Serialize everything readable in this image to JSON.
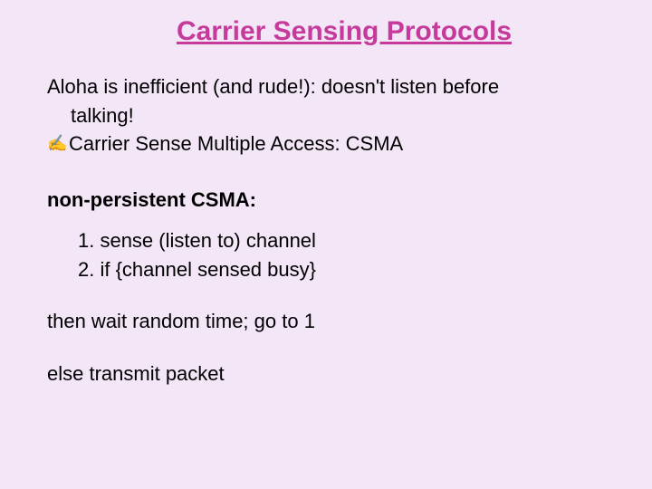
{
  "title": "Carrier Sensing Protocols",
  "title_color": "#c63a9c",
  "background_color": "#f2e6f7",
  "body_color": "#000000",
  "title_fontsize": 30,
  "body_fontsize": 22,
  "intro_line1": "Aloha is inefficient (and rude!): doesn't listen before",
  "intro_line2": "talking!",
  "bullet_glyph": "✍",
  "bullet_text": "Carrier Sense Multiple Access: CSMA",
  "heading2": "non-persistent CSMA:",
  "steps": [
    "1. sense (listen to) channel",
    "2. if {channel sensed busy}"
  ],
  "then_text": "then wait random time; go to 1",
  "else_text": "else transmit packet"
}
